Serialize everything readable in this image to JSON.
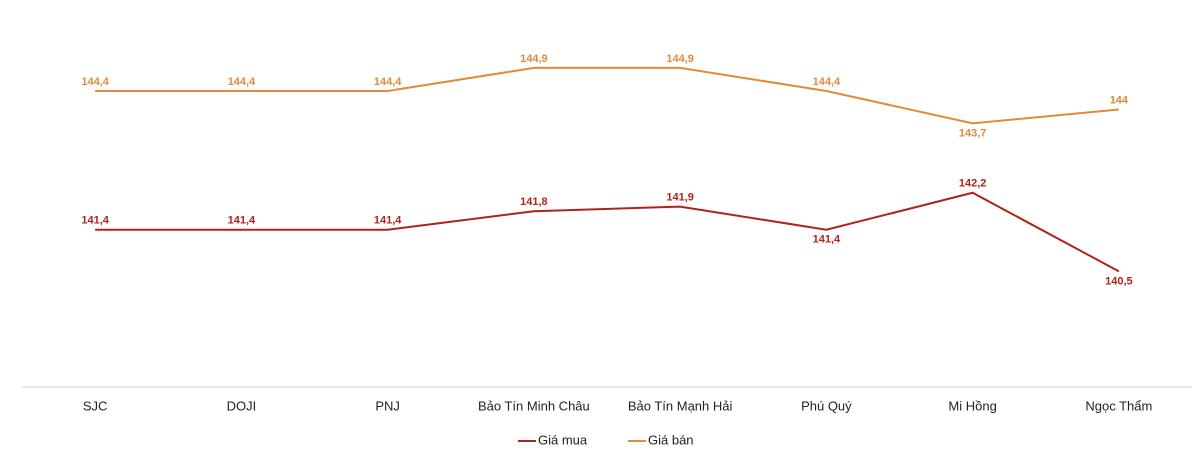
{
  "chart_data": {
    "type": "line",
    "categories": [
      "SJC",
      "DOJI",
      "PNJ",
      "Bảo Tín Minh Châu",
      "Bảo Tín Mạnh Hải",
      "Phú Quý",
      "Mi Hồng",
      "Ngọc Thẩm"
    ],
    "series": [
      {
        "name": "Giá mua",
        "color": "#b0231b",
        "values": [
          141.4,
          141.4,
          141.4,
          141.8,
          141.9,
          141.4,
          142.2,
          140.5
        ],
        "value_labels": [
          "141,4",
          "141,4",
          "141,4",
          "141,8",
          "141,9",
          "141,4",
          "142,2",
          "140,5"
        ]
      },
      {
        "name": "Giá bán",
        "color": "#e08a3c",
        "values": [
          144.4,
          144.4,
          144.4,
          144.9,
          144.9,
          144.4,
          143.7,
          144
        ],
        "value_labels": [
          "144,4",
          "144,4",
          "144,4",
          "144,9",
          "144,9",
          "144,4",
          "143,7",
          "144"
        ]
      }
    ],
    "ylim": [
      138,
      146
    ],
    "legend": "bottom"
  }
}
